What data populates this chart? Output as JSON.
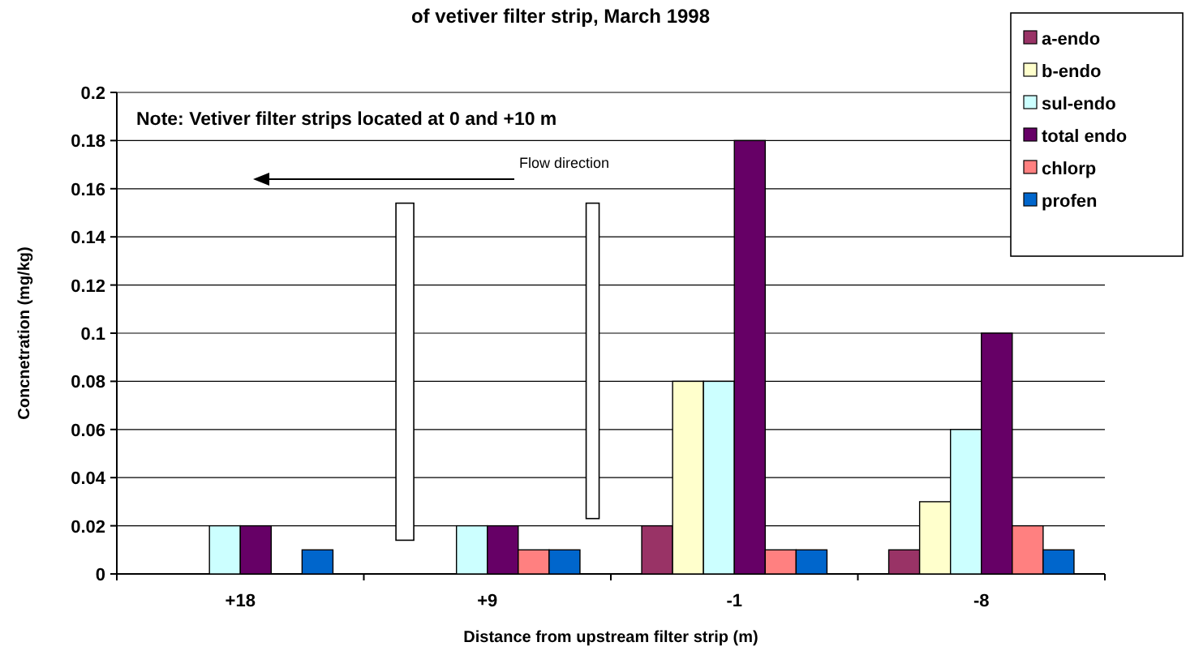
{
  "chart_data": {
    "type": "bar",
    "title": "of vetiver filter strip, March 1998",
    "xlabel": "Distance from upstream filter strip (m)",
    "ylabel": "Concnetration (mg/kg)",
    "categories": [
      "+18",
      "+9",
      "-1",
      "-8"
    ],
    "series": [
      {
        "name": "a-endo",
        "color": "#993366",
        "values": [
          0,
          0,
          0.02,
          0.01
        ]
      },
      {
        "name": "b-endo",
        "color": "#ffffcc",
        "values": [
          0,
          0,
          0.08,
          0.03
        ]
      },
      {
        "name": "sul-endo",
        "color": "#ccffff",
        "values": [
          0.02,
          0.02,
          0.08,
          0.06
        ]
      },
      {
        "name": "total endo",
        "color": "#660066",
        "values": [
          0.02,
          0.02,
          0.18,
          0.1
        ]
      },
      {
        "name": "chlorp",
        "color": "#ff8080",
        "values": [
          0,
          0.01,
          0.01,
          0.02
        ]
      },
      {
        "name": "profen",
        "color": "#0066cc",
        "values": [
          0.01,
          0.01,
          0.01,
          0.01
        ]
      }
    ],
    "ylim": [
      0,
      0.2
    ],
    "yticks": [
      0,
      0.02,
      0.04,
      0.06,
      0.08,
      {
        "value": 0.1,
        "label": "0.1"
      },
      0.12,
      0.14,
      0.16,
      0.18,
      0.2
    ],
    "grid": "y",
    "legend": "top right",
    "annotations": [
      "Note: Vetiver filter strips located at 0 and +10 m",
      "Flow direction"
    ]
  }
}
